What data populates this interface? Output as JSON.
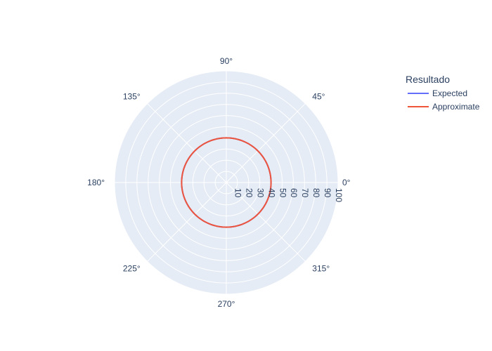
{
  "chart_data": {
    "type": "line",
    "subtype": "polar",
    "radial_axis": {
      "range": [
        0,
        100
      ],
      "tick_labels": [
        "10",
        "20",
        "30",
        "40",
        "50",
        "60",
        "70",
        "80",
        "90",
        "100"
      ]
    },
    "angular_axis": {
      "tick_labels": [
        "0°",
        "45°",
        "90°",
        "135°",
        "180°",
        "225°",
        "270°",
        "315°"
      ]
    },
    "grid": true,
    "plot_background": "#e5ecf6",
    "legend": {
      "title": "Resultado",
      "placement": "top-right"
    },
    "series": [
      {
        "name": "Expected",
        "color": "#636efa",
        "r": 40,
        "theta_range_deg": [
          0,
          360
        ]
      },
      {
        "name": "Approximate",
        "color": "#ef553b",
        "r": 40,
        "theta_range_deg": [
          0,
          360
        ]
      }
    ]
  }
}
